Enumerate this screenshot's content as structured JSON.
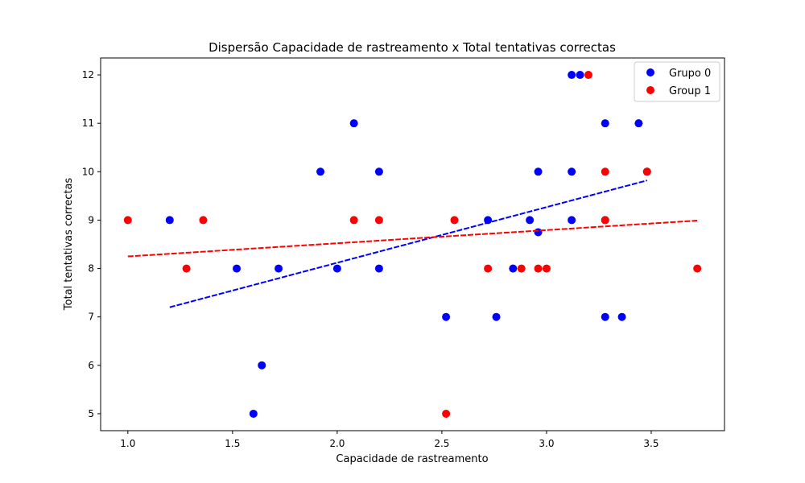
{
  "chart_data": {
    "type": "scatter",
    "title": "Dispersão Capacidade de rastreamento x Total tentativas correctas",
    "xlabel": "Capacidade de rastreamento",
    "ylabel": "Total tentativas correctas",
    "xlim": [
      0.87,
      3.85
    ],
    "ylim": [
      4.65,
      12.35
    ],
    "xticks": [
      1.0,
      1.5,
      2.0,
      2.5,
      3.0,
      3.5
    ],
    "xtick_labels": [
      "1.0",
      "1.5",
      "2.0",
      "2.5",
      "3.0",
      "3.5"
    ],
    "yticks": [
      5,
      6,
      7,
      8,
      9,
      10,
      11,
      12
    ],
    "ytick_labels": [
      "5",
      "6",
      "7",
      "8",
      "9",
      "10",
      "11",
      "12"
    ],
    "grid": false,
    "legend_position": "top-right",
    "series": [
      {
        "name": "Grupo 0",
        "color": "#0000ff",
        "points": [
          [
            1.2,
            9
          ],
          [
            1.52,
            8
          ],
          [
            1.6,
            5
          ],
          [
            1.64,
            6
          ],
          [
            1.72,
            8
          ],
          [
            1.92,
            10
          ],
          [
            2.0,
            8
          ],
          [
            2.08,
            11
          ],
          [
            2.2,
            10
          ],
          [
            2.2,
            8
          ],
          [
            2.52,
            7
          ],
          [
            2.72,
            9
          ],
          [
            2.76,
            7
          ],
          [
            2.84,
            8
          ],
          [
            2.92,
            9
          ],
          [
            2.96,
            10
          ],
          [
            2.96,
            8.75
          ],
          [
            3.12,
            12
          ],
          [
            3.16,
            12
          ],
          [
            3.12,
            10
          ],
          [
            3.12,
            9
          ],
          [
            3.28,
            11
          ],
          [
            3.28,
            9
          ],
          [
            3.28,
            7
          ],
          [
            3.36,
            7
          ],
          [
            3.44,
            11
          ],
          [
            3.48,
            10
          ]
        ],
        "trendline": {
          "x": [
            1.2,
            3.48
          ],
          "y": [
            7.2,
            9.82
          ],
          "style": "dashed"
        }
      },
      {
        "name": "Group 1",
        "color": "#ff0000",
        "points": [
          [
            1.0,
            9
          ],
          [
            1.28,
            8
          ],
          [
            1.36,
            9
          ],
          [
            2.08,
            9
          ],
          [
            2.2,
            9
          ],
          [
            2.52,
            5
          ],
          [
            2.56,
            9
          ],
          [
            2.72,
            8
          ],
          [
            2.88,
            8
          ],
          [
            2.96,
            8
          ],
          [
            3.0,
            8
          ],
          [
            3.2,
            12
          ],
          [
            3.28,
            10
          ],
          [
            3.28,
            9
          ],
          [
            3.48,
            10
          ],
          [
            3.72,
            8
          ]
        ],
        "trendline": {
          "x": [
            1.0,
            3.72
          ],
          "y": [
            8.25,
            8.99
          ],
          "style": "dashed"
        }
      }
    ]
  }
}
